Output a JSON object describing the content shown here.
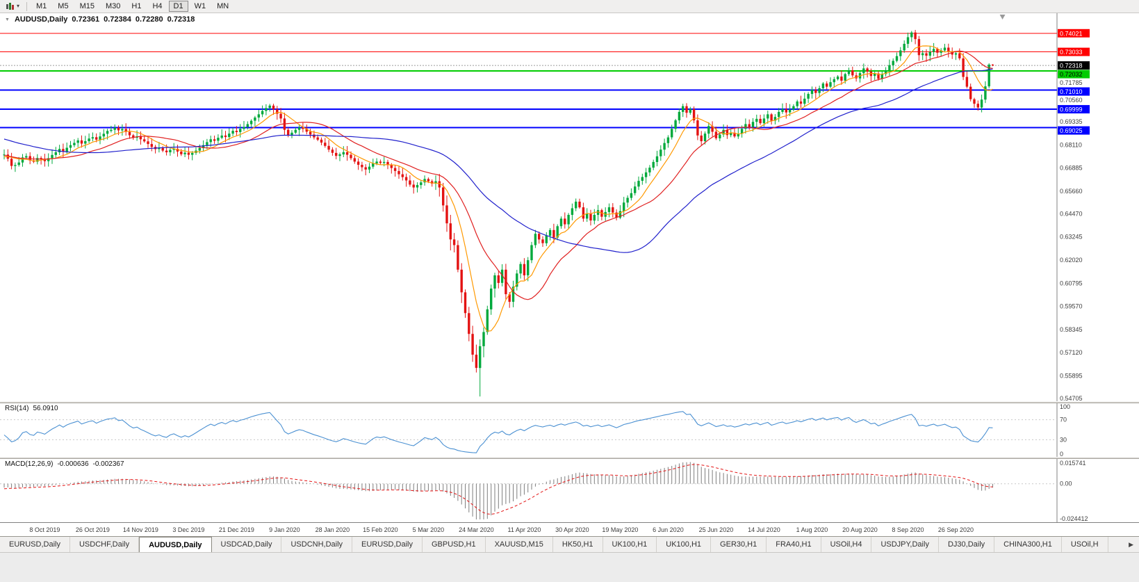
{
  "toolbar": {
    "dropdown_icon": "▾",
    "timeframes": [
      "M1",
      "M5",
      "M15",
      "M30",
      "H1",
      "H4",
      "D1",
      "W1",
      "MN"
    ],
    "active_timeframe": "D1"
  },
  "chart_header": {
    "collapse_icon": "▼",
    "symbol": "AUDUSD,Daily",
    "o": "0.72361",
    "h": "0.72384",
    "l": "0.72280",
    "c": "0.72318"
  },
  "chart_data": {
    "type": "candlestick",
    "symbol": "AUDUSD",
    "timeframe": "Daily",
    "ohlc_display": [
      0.72361,
      0.72384,
      0.7228,
      0.72318
    ],
    "price_axis": {
      "top": 0.7508,
      "bottom": 0.5455,
      "labels": [
        "0.71785",
        "0.70560",
        "0.69335",
        "0.68110",
        "0.66885",
        "0.65660",
        "0.64470",
        "0.63245",
        "0.62020",
        "0.60795",
        "0.59570",
        "0.58345",
        "0.57120",
        "0.55895",
        "0.54705"
      ],
      "current": {
        "value": 0.72318,
        "label": "0.72318"
      }
    },
    "hlines": [
      {
        "price": 0.74021,
        "label": "0.74021",
        "color": "#FF0000",
        "width": 1,
        "text": "#FFFFFF"
      },
      {
        "price": 0.73033,
        "label": "0.73033",
        "color": "#FF0000",
        "width": 1,
        "text": "#FFFFFF"
      },
      {
        "price": 0.72032,
        "label": "0.72032",
        "color": "#00CC00",
        "width": 2,
        "text": "#000000"
      },
      {
        "price": 0.7101,
        "label": "0.71010",
        "color": "#0000FF",
        "width": 2,
        "text": "#FFFFFF"
      },
      {
        "price": 0.69999,
        "label": "0.69999",
        "color": "#0000FF",
        "width": 2,
        "text": "#FFFFFF"
      },
      {
        "price": 0.69025,
        "label": "0.69025",
        "color": "#0000FF",
        "width": 2,
        "text": "#FFFFFF"
      }
    ],
    "time_axis": [
      {
        "label": "8 Oct 2019",
        "bar": 11
      },
      {
        "label": "26 Oct 2019",
        "bar": 24
      },
      {
        "label": "14 Nov 2019",
        "bar": 37
      },
      {
        "label": "3 Dec 2019",
        "bar": 50
      },
      {
        "label": "21 Dec 2019",
        "bar": 63
      },
      {
        "label": "9 Jan 2020",
        "bar": 76
      },
      {
        "label": "28 Jan 2020",
        "bar": 89
      },
      {
        "label": "15 Feb 2020",
        "bar": 102
      },
      {
        "label": "5 Mar 2020",
        "bar": 115
      },
      {
        "label": "24 Mar 2020",
        "bar": 128
      },
      {
        "label": "11 Apr 2020",
        "bar": 141
      },
      {
        "label": "30 Apr 2020",
        "bar": 154
      },
      {
        "label": "19 May 2020",
        "bar": 167
      },
      {
        "label": "6 Jun 2020",
        "bar": 180
      },
      {
        "label": "25 Jun 2020",
        "bar": 193
      },
      {
        "label": "14 Jul 2020",
        "bar": 206
      },
      {
        "label": "1 Aug 2020",
        "bar": 219
      },
      {
        "label": "20 Aug 2020",
        "bar": 232
      },
      {
        "label": "8 Sep 2020",
        "bar": 245
      },
      {
        "label": "26 Sep 2020",
        "bar": 258
      }
    ],
    "pre_history": [
      0.7015,
      0.7002,
      0.6988,
      0.6995,
      0.698,
      0.6965,
      0.6972,
      0.6958,
      0.6945,
      0.6952,
      0.6938,
      0.6925,
      0.6918,
      0.6905,
      0.6912,
      0.6898,
      0.6885,
      0.6892,
      0.6878,
      0.6865,
      0.6872,
      0.6858,
      0.6845,
      0.6852,
      0.6838,
      0.6846,
      0.6832,
      0.6819,
      0.6826,
      0.6812,
      0.6799,
      0.6806,
      0.6792,
      0.6779,
      0.6786,
      0.6772,
      0.6759,
      0.6766,
      0.6752,
      0.6739,
      0.6746,
      0.6732,
      0.6719,
      0.6726,
      0.6731,
      0.6742,
      0.6748,
      0.6755,
      0.6762,
      0.6758
    ],
    "closes": [
      0.676,
      0.6738,
      0.67,
      0.6705,
      0.6718,
      0.6745,
      0.6752,
      0.6729,
      0.6722,
      0.6742,
      0.6735,
      0.6725,
      0.6741,
      0.6758,
      0.6772,
      0.679,
      0.6776,
      0.6796,
      0.681,
      0.6822,
      0.6835,
      0.6818,
      0.6831,
      0.6845,
      0.6852,
      0.6839,
      0.6856,
      0.687,
      0.6885,
      0.6891,
      0.6902,
      0.6888,
      0.6895,
      0.688,
      0.6862,
      0.6849,
      0.6856,
      0.6841,
      0.683,
      0.6816,
      0.6801,
      0.6789,
      0.6795,
      0.6781,
      0.6772,
      0.6785,
      0.6791,
      0.6776,
      0.6762,
      0.677,
      0.6759,
      0.6769,
      0.6781,
      0.6795,
      0.681,
      0.6826,
      0.6841,
      0.6833,
      0.6849,
      0.6861,
      0.6853,
      0.6871,
      0.6886,
      0.6879,
      0.6896,
      0.6906,
      0.6921,
      0.6939,
      0.6956,
      0.6973,
      0.6991,
      0.7006,
      0.7019,
      0.6999,
      0.6976,
      0.6951,
      0.6891,
      0.6863,
      0.6876,
      0.6891,
      0.6903,
      0.6896,
      0.6881,
      0.6866,
      0.6851,
      0.6839,
      0.6823,
      0.6806,
      0.6786,
      0.6769,
      0.6753,
      0.6761,
      0.6773,
      0.6759,
      0.6741,
      0.6723,
      0.6706,
      0.6693,
      0.6681,
      0.6696,
      0.6713,
      0.6723,
      0.6716,
      0.6721,
      0.6706,
      0.6689,
      0.6673,
      0.6656,
      0.6641,
      0.6623,
      0.6601,
      0.6586,
      0.6599,
      0.6613,
      0.6631,
      0.6619,
      0.6606,
      0.6619,
      0.6586,
      0.6491,
      0.6396,
      0.6311,
      0.6281,
      0.6151,
      0.6031,
      0.5921,
      0.5811,
      0.5701,
      0.5631,
      0.5746,
      0.5821,
      0.5941,
      0.6051,
      0.6121,
      0.6081,
      0.6151,
      0.6021,
      0.5981,
      0.6061,
      0.6131,
      0.6181,
      0.6121,
      0.6201,
      0.6281,
      0.6341,
      0.6311,
      0.6291,
      0.6331,
      0.6361,
      0.6321,
      0.6381,
      0.6421,
      0.6391,
      0.6441,
      0.6476,
      0.6511,
      0.6481,
      0.6421,
      0.6446,
      0.6411,
      0.6441,
      0.6466,
      0.6431,
      0.6456,
      0.6481,
      0.6453,
      0.6426,
      0.6461,
      0.6506,
      0.6531,
      0.6556,
      0.6591,
      0.6621,
      0.6641,
      0.6666,
      0.6691,
      0.6721,
      0.6751,
      0.6786,
      0.6821,
      0.6851,
      0.6896,
      0.6941,
      0.6986,
      0.7016,
      0.6981,
      0.7001,
      0.6941,
      0.6861,
      0.6831,
      0.6871,
      0.6911,
      0.6881,
      0.6846,
      0.6866,
      0.6891,
      0.6863,
      0.6876,
      0.6856,
      0.6871,
      0.6896,
      0.6921,
      0.6906,
      0.6933,
      0.6949,
      0.6926,
      0.6951,
      0.6973,
      0.6939,
      0.6959,
      0.6986,
      0.7001,
      0.6983,
      0.6999,
      0.7016,
      0.7041,
      0.7029,
      0.7056,
      0.7081,
      0.7103,
      0.7086,
      0.7111,
      0.7136,
      0.7119,
      0.7143,
      0.7159,
      0.7173,
      0.7151,
      0.7186,
      0.7206,
      0.7179,
      0.7163,
      0.7191,
      0.7216,
      0.7199,
      0.7176,
      0.7189,
      0.7161,
      0.7186,
      0.7206,
      0.7233,
      0.7256,
      0.7281,
      0.7311,
      0.7346,
      0.7381,
      0.7406,
      0.7371,
      0.7286,
      0.7296,
      0.7283,
      0.7303,
      0.7319,
      0.7299,
      0.7311,
      0.7326,
      0.7306,
      0.7289,
      0.7296,
      0.7269,
      0.7171,
      0.7119,
      0.7053,
      0.7029,
      0.7009,
      0.7051,
      0.7121,
      0.7236,
      0.72318
    ],
    "overrides": {
      "129": {
        "l": 0.548
      },
      "246": {
        "h": 0.7414
      },
      "268": {
        "o": 0.72361,
        "h": 0.72384,
        "l": 0.7228,
        "c": 0.72318
      }
    },
    "candle_colors": {
      "up": "#00A93C",
      "down": "#E31212"
    },
    "moving_averages": [
      {
        "period": 8,
        "color": "#FF9900"
      },
      {
        "period": 20,
        "color": "#E02020"
      },
      {
        "period": 50,
        "color": "#2020CC"
      }
    ],
    "indicators": {
      "rsi": {
        "name": "RSI(14)",
        "value": "56.0910",
        "period": 14,
        "color": "#4A90D2",
        "levels": [
          100,
          70,
          30,
          0
        ],
        "level_lines": [
          70,
          30
        ]
      },
      "macd": {
        "name": "MACD(12,26,9)",
        "main": "-0.000636",
        "signal_value": "-0.002367",
        "fast": 12,
        "slow": 26,
        "signal": 9,
        "scale_max": 0.015741,
        "scale_min": -0.024412,
        "axis_labels": [
          "0.015741",
          "0.00",
          "-0.024412"
        ],
        "histogram_color": "#7D7D7D",
        "signal_color": "#E31212"
      }
    }
  },
  "tabs": {
    "items": [
      "EURUSD,Daily",
      "USDCHF,Daily",
      "AUDUSD,Daily",
      "USDCAD,Daily",
      "USDCNH,Daily",
      "EURUSD,Daily",
      "GBPUSD,H1",
      "XAUUSD,M15",
      "HK50,H1",
      "UK100,H1",
      "UK100,H1",
      "GER30,H1",
      "FRA40,H1",
      "USOil,H4",
      "USDJPY,Daily",
      "DJ30,Daily",
      "CHINA300,H1",
      "USOil,H"
    ],
    "active_index": 2,
    "scroll_right": "▶"
  }
}
